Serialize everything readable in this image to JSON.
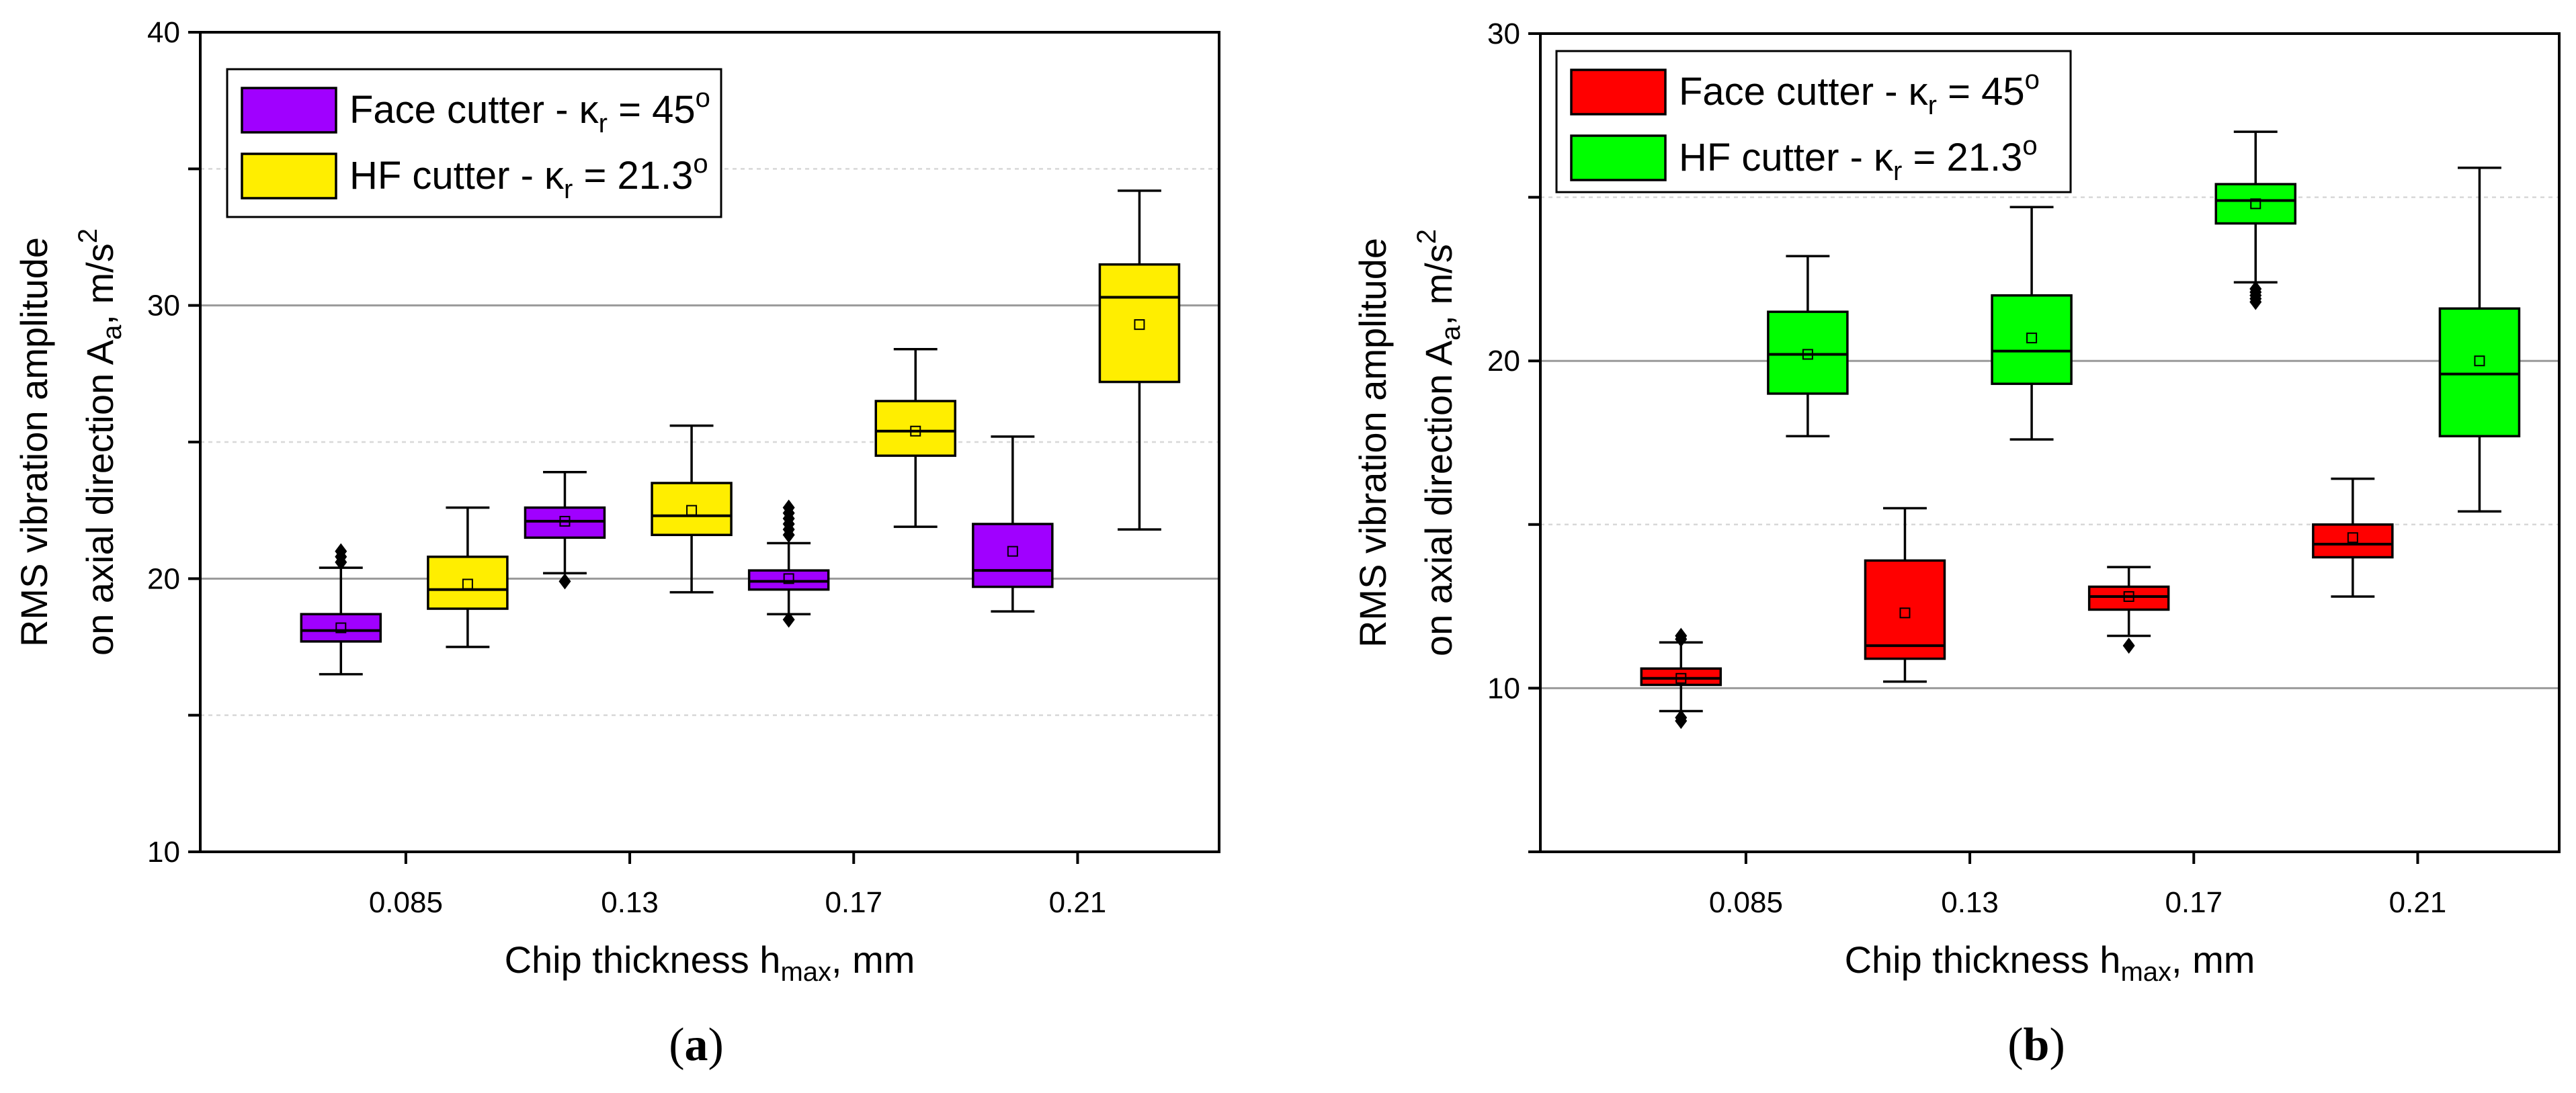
{
  "chart_data": [
    {
      "panel": "a",
      "panel_label": {
        "open": "(",
        "letter": "a",
        "close": ")"
      },
      "type": "box",
      "ylim": [
        10,
        40
      ],
      "y_ticks": [
        "10",
        "20",
        "30",
        "40"
      ],
      "x_categories": [
        "0.085",
        "0.13",
        "0.17",
        "0.21"
      ],
      "xlabel": {
        "main": "Chip thickness h",
        "sub": "max",
        "tail": ", mm"
      },
      "ylabel": {
        "line1": "RMS vibration amplitude",
        "line2": "on axial direction  A",
        "line2_sub": "a",
        "line2_mid": ", m/s",
        "line2_sup": "2"
      },
      "legend": [
        {
          "main": "Face cutter - κ",
          "sub": "r",
          "mid": " = 45",
          "sup": "o",
          "color": "#a000ff"
        },
        {
          "main": "HF cutter - κ",
          "sub": "r",
          "mid": " = 21.3",
          "sup": "o",
          "color": "#ffee00"
        }
      ],
      "series": [
        {
          "name": "Face cutter",
          "color": "#a000ff",
          "boxes": [
            {
              "category": "0.085",
              "whisker_low": 16.5,
              "q1": 17.7,
              "median": 18.1,
              "q3": 18.7,
              "whisker_high": 20.4,
              "mean": 18.2,
              "outliers": [
                20.6,
                20.8,
                21.0
              ]
            },
            {
              "category": "0.13",
              "whisker_low": 20.2,
              "q1": 21.5,
              "median": 22.1,
              "q3": 22.6,
              "whisker_high": 23.9,
              "mean": 22.1,
              "outliers": [
                19.9
              ]
            },
            {
              "category": "0.17",
              "whisker_low": 18.7,
              "q1": 19.6,
              "median": 19.9,
              "q3": 20.3,
              "whisker_high": 21.3,
              "mean": 20.0,
              "outliers": [
                18.5,
                21.6,
                21.8,
                22.0,
                22.2,
                22.4,
                22.6
              ]
            },
            {
              "category": "0.21",
              "whisker_low": 18.8,
              "q1": 19.7,
              "median": 20.3,
              "q3": 22.0,
              "whisker_high": 25.2,
              "mean": 21.0,
              "outliers": []
            }
          ]
        },
        {
          "name": "HF cutter",
          "color": "#ffee00",
          "boxes": [
            {
              "category": "0.085",
              "whisker_low": 17.5,
              "q1": 18.9,
              "median": 19.6,
              "q3": 20.8,
              "whisker_high": 22.6,
              "mean": 19.8,
              "outliers": []
            },
            {
              "category": "0.13",
              "whisker_low": 19.5,
              "q1": 21.6,
              "median": 22.3,
              "q3": 23.5,
              "whisker_high": 25.6,
              "mean": 22.5,
              "outliers": []
            },
            {
              "category": "0.17",
              "whisker_low": 21.9,
              "q1": 24.5,
              "median": 25.4,
              "q3": 26.5,
              "whisker_high": 28.4,
              "mean": 25.4,
              "outliers": []
            },
            {
              "category": "0.21",
              "whisker_low": 21.8,
              "q1": 27.2,
              "median": 30.3,
              "q3": 31.5,
              "whisker_high": 34.2,
              "mean": 29.3,
              "outliers": []
            }
          ]
        }
      ]
    },
    {
      "panel": "b",
      "panel_label": {
        "open": "(",
        "letter": "b",
        "close": ")"
      },
      "type": "box",
      "ylim": [
        5,
        30
      ],
      "y_ticks": [
        "10",
        "20",
        "30"
      ],
      "x_categories": [
        "0.085",
        "0.13",
        "0.17",
        "0.21"
      ],
      "xlabel": {
        "main": "Chip thickness h",
        "sub": "max",
        "tail": ", mm"
      },
      "ylabel": {
        "line1": "RMS vibration amplitude",
        "line2": "on axial direction  A",
        "line2_sub": "a",
        "line2_mid": ", m/s",
        "line2_sup": "2"
      },
      "legend": [
        {
          "main": "Face cutter - κ",
          "sub": "r",
          "mid": " = 45",
          "sup": "o",
          "color": "#ff0000"
        },
        {
          "main": "HF cutter - κ",
          "sub": "r",
          "mid": " = 21.3",
          "sup": "o",
          "color": "#00ff00"
        }
      ],
      "series": [
        {
          "name": "Face cutter",
          "color": "#ff0000",
          "boxes": [
            {
              "category": "0.085",
              "whisker_low": 9.3,
              "q1": 10.1,
              "median": 10.3,
              "q3": 10.6,
              "whisker_high": 11.4,
              "mean": 10.3,
              "outliers": [
                9.0,
                9.1,
                11.6,
                11.5
              ]
            },
            {
              "category": "0.13",
              "whisker_low": 10.2,
              "q1": 10.9,
              "median": 11.3,
              "q3": 13.9,
              "whisker_high": 15.5,
              "mean": 12.3,
              "outliers": []
            },
            {
              "category": "0.17",
              "whisker_low": 11.6,
              "q1": 12.4,
              "median": 12.8,
              "q3": 13.1,
              "whisker_high": 13.7,
              "mean": 12.8,
              "outliers": [
                11.3
              ]
            },
            {
              "category": "0.21",
              "whisker_low": 12.8,
              "q1": 14.0,
              "median": 14.4,
              "q3": 15.0,
              "whisker_high": 16.4,
              "mean": 14.6,
              "outliers": []
            }
          ]
        },
        {
          "name": "HF cutter",
          "color": "#00ff00",
          "boxes": [
            {
              "category": "0.085",
              "whisker_low": 17.7,
              "q1": 19.0,
              "median": 20.2,
              "q3": 21.5,
              "whisker_high": 23.2,
              "mean": 20.2,
              "outliers": []
            },
            {
              "category": "0.13",
              "whisker_low": 17.6,
              "q1": 19.3,
              "median": 20.3,
              "q3": 22.0,
              "whisker_high": 24.7,
              "mean": 20.7,
              "outliers": []
            },
            {
              "category": "0.17",
              "whisker_low": 22.4,
              "q1": 24.2,
              "median": 24.9,
              "q3": 25.4,
              "whisker_high": 27.0,
              "mean": 24.8,
              "outliers": [
                21.8,
                21.9,
                22.0,
                22.1,
                22.2
              ]
            },
            {
              "category": "0.21",
              "whisker_low": 15.4,
              "q1": 17.7,
              "median": 19.6,
              "q3": 21.6,
              "whisker_high": 25.9,
              "mean": 20.0,
              "outliers": []
            }
          ]
        }
      ]
    }
  ]
}
